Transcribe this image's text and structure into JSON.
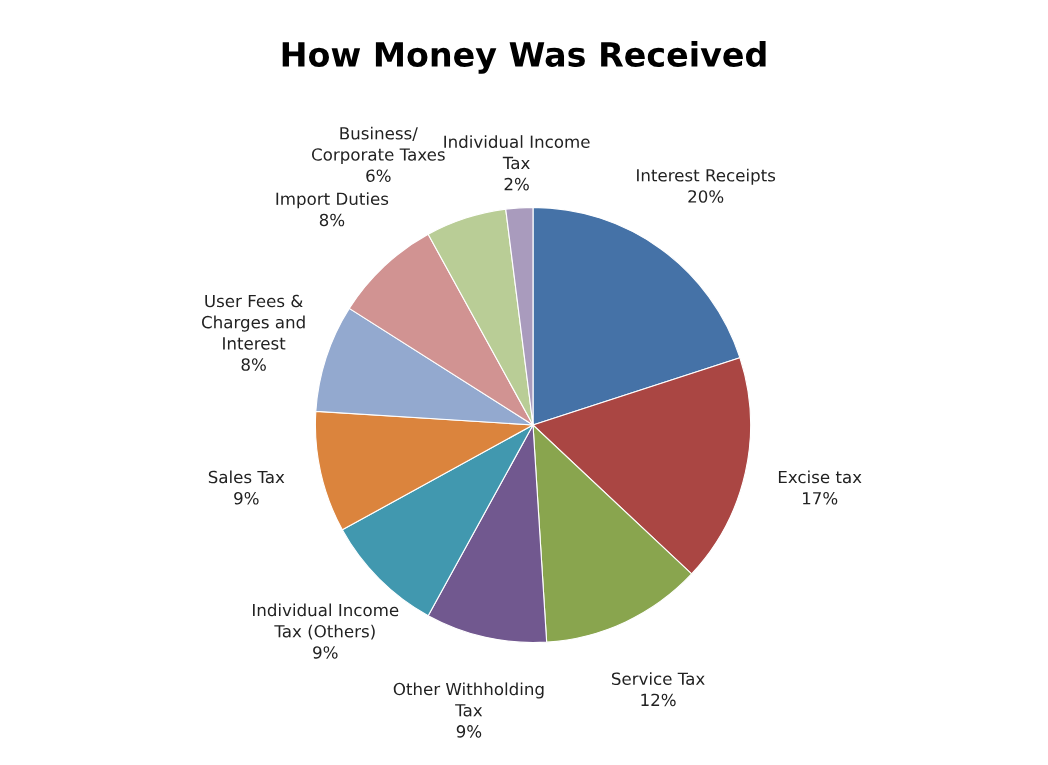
{
  "chart_data": {
    "type": "pie",
    "title": "How Money Was Received",
    "categories": [
      "Interest Receipts",
      "Excise tax",
      "Service Tax",
      "Other Withholding\nTax",
      "Individual Income\nTax (Others)",
      "Sales Tax",
      "User Fees &\nCharges and\nInterest",
      "Import Duties",
      "Business/\nCorporate Taxes",
      "Individual Income\nTax"
    ],
    "values": [
      20,
      17,
      12,
      9,
      9,
      9,
      8,
      8,
      6,
      2
    ],
    "value_labels": [
      "20%",
      "17%",
      "12%",
      "9%",
      "9%",
      "9%",
      "8%",
      "8%",
      "6%",
      "2%"
    ],
    "colors": [
      "#4572a7",
      "#aa4643",
      "#89a54e",
      "#71588f",
      "#4198af",
      "#db843d",
      "#93a9cf",
      "#d19392",
      "#b9cd96",
      "#a99bbd"
    ],
    "legend": false
  }
}
